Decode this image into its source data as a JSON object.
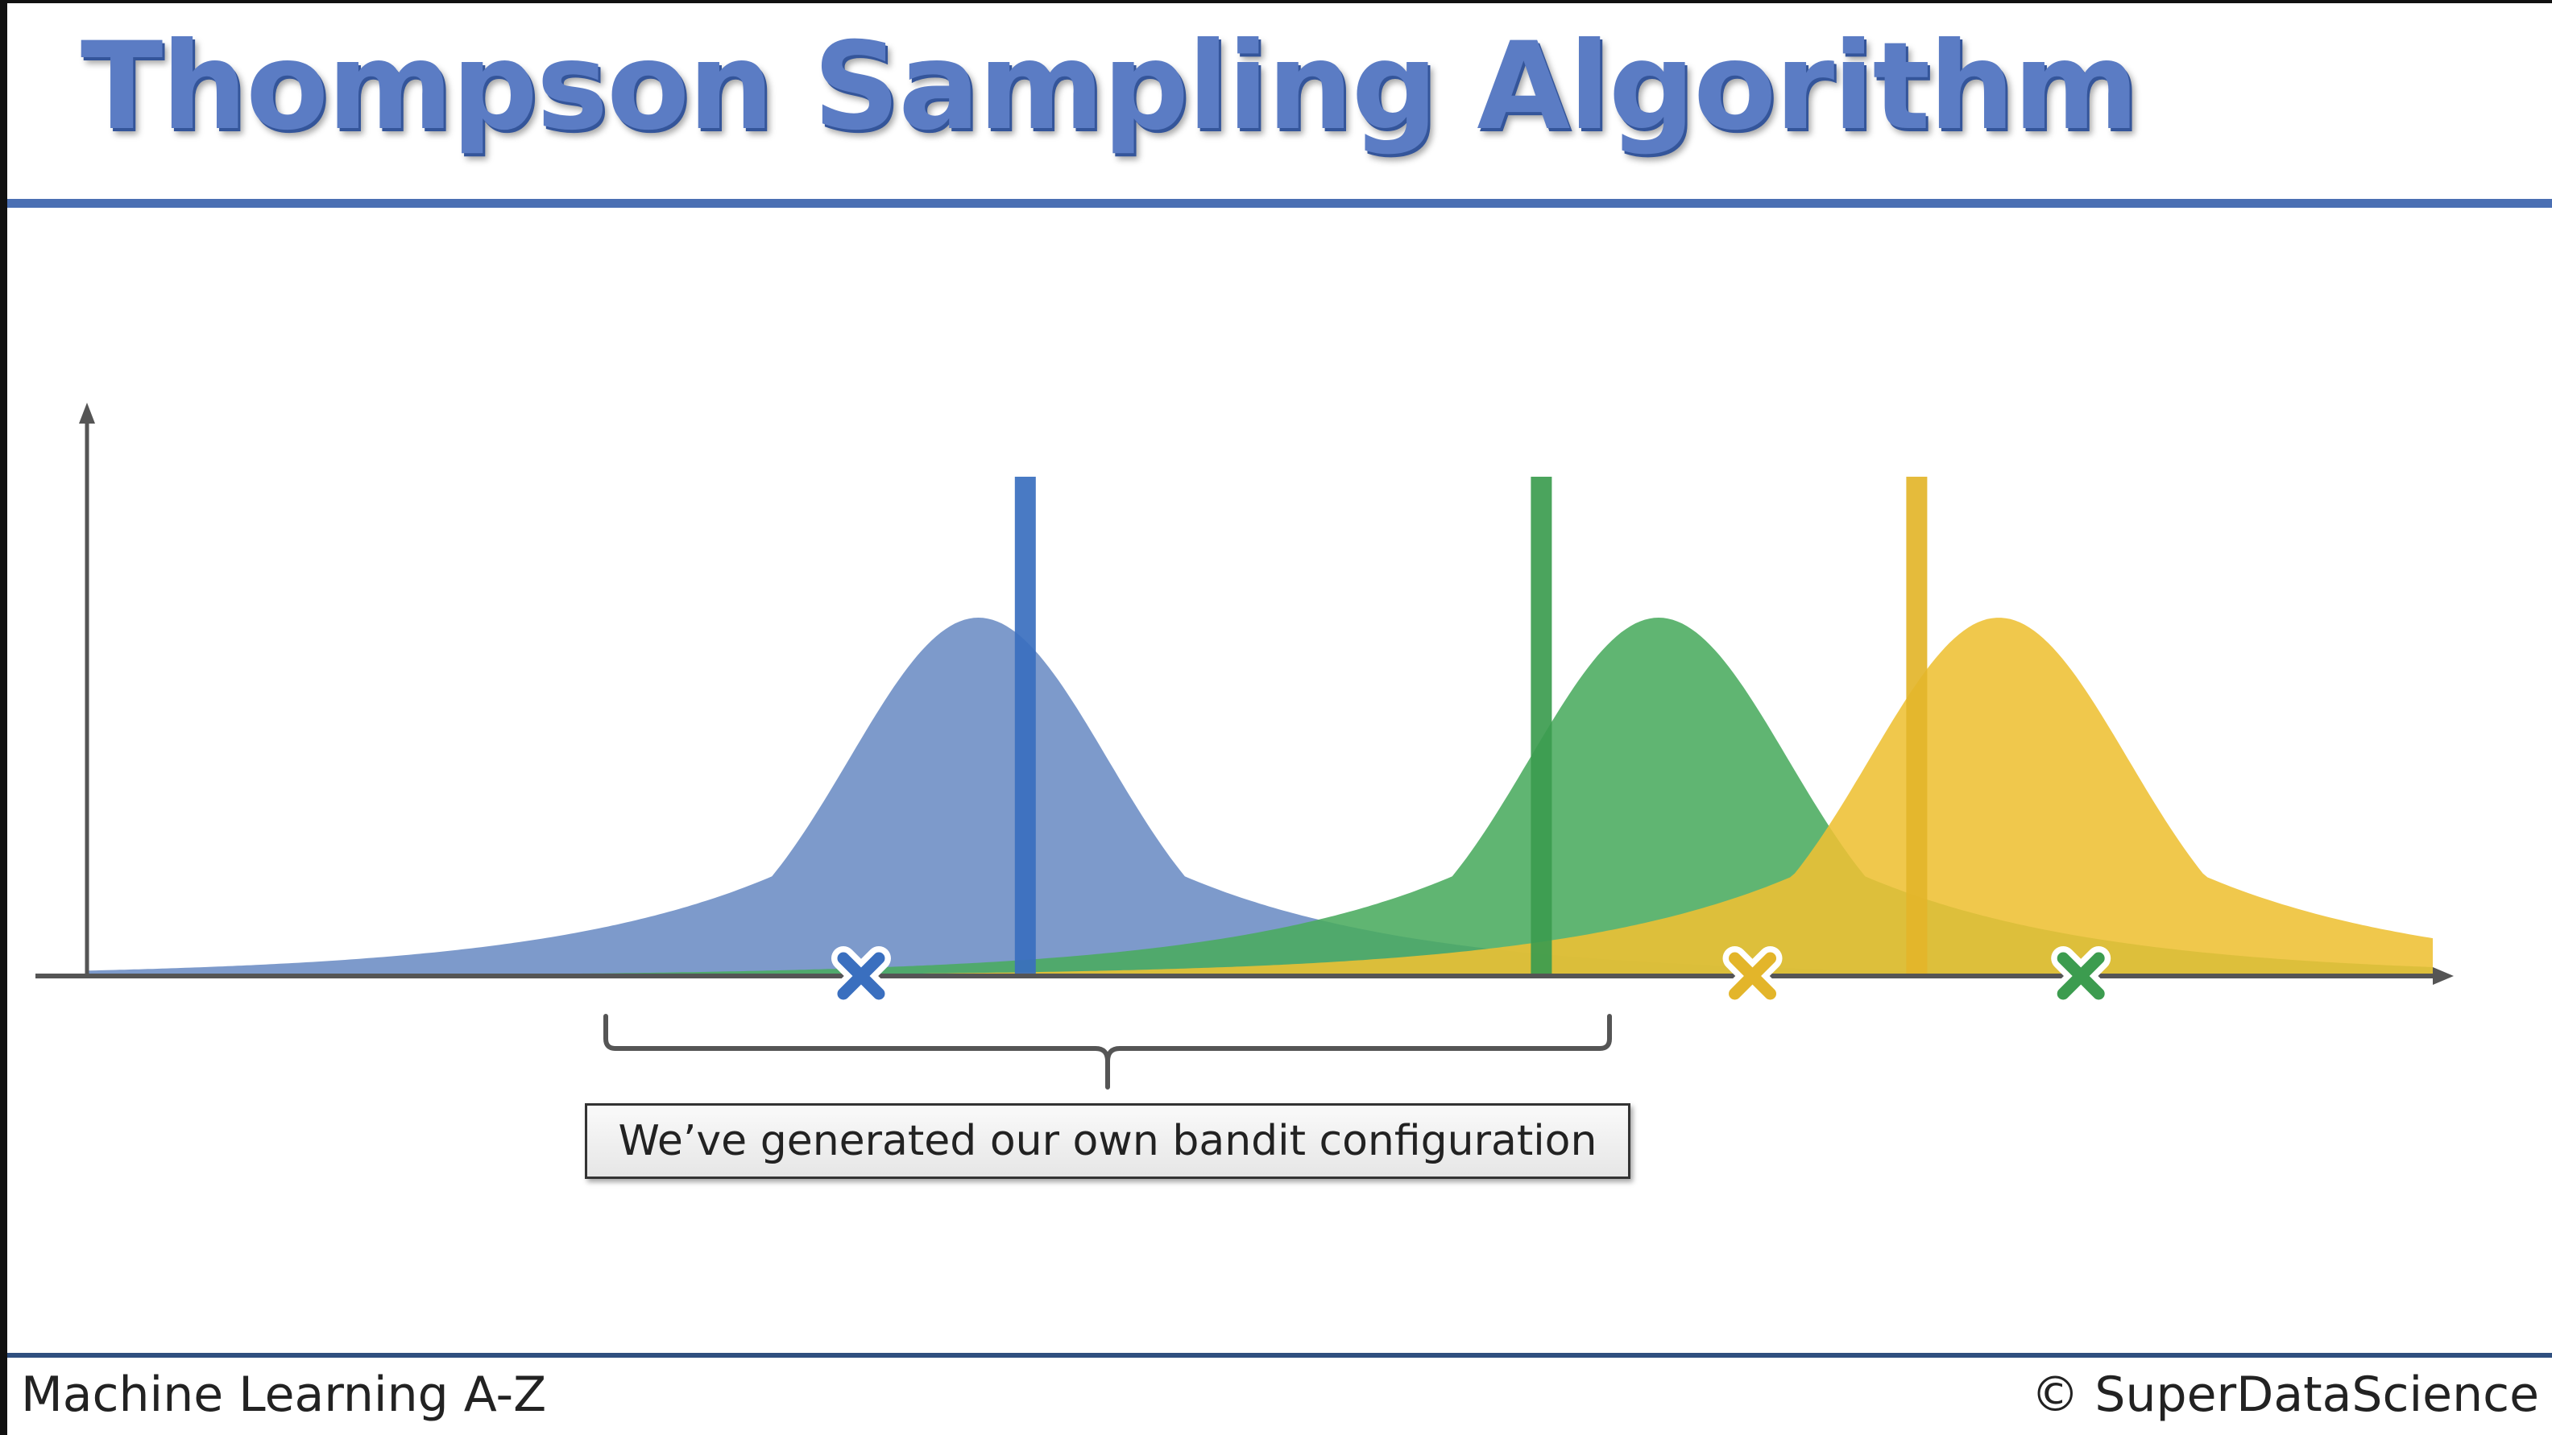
{
  "slide": {
    "title": "Thompson Sampling Algorithm",
    "caption": "We’ve generated our own bandit  configuration",
    "footer_left": "Machine Learning A-Z",
    "footer_right": "© SuperDataScience"
  },
  "colors": {
    "title": "#5b7cc4",
    "rule": "#4a6fb3",
    "blue": "#6b8cc4",
    "blue_bar": "#3a6fbf",
    "green": "#4aab5e",
    "green_bar": "#3c9c4f",
    "yellow": "#eec033",
    "yellow_bar": "#e3b52a",
    "axis": "#555555"
  },
  "distributions": [
    {
      "name": "blue",
      "mean": 0.38,
      "sd": 0.055,
      "true_value": 0.4,
      "sample": 0.33
    },
    {
      "name": "green",
      "mean": 0.67,
      "sd": 0.055,
      "true_value": 0.62,
      "sample": 0.85
    },
    {
      "name": "yellow",
      "mean": 0.815,
      "sd": 0.055,
      "true_value": 0.78,
      "sample": 0.71
    }
  ],
  "icons": {
    "sample_marker": "x-cross-icon",
    "brace": "curly-brace"
  }
}
